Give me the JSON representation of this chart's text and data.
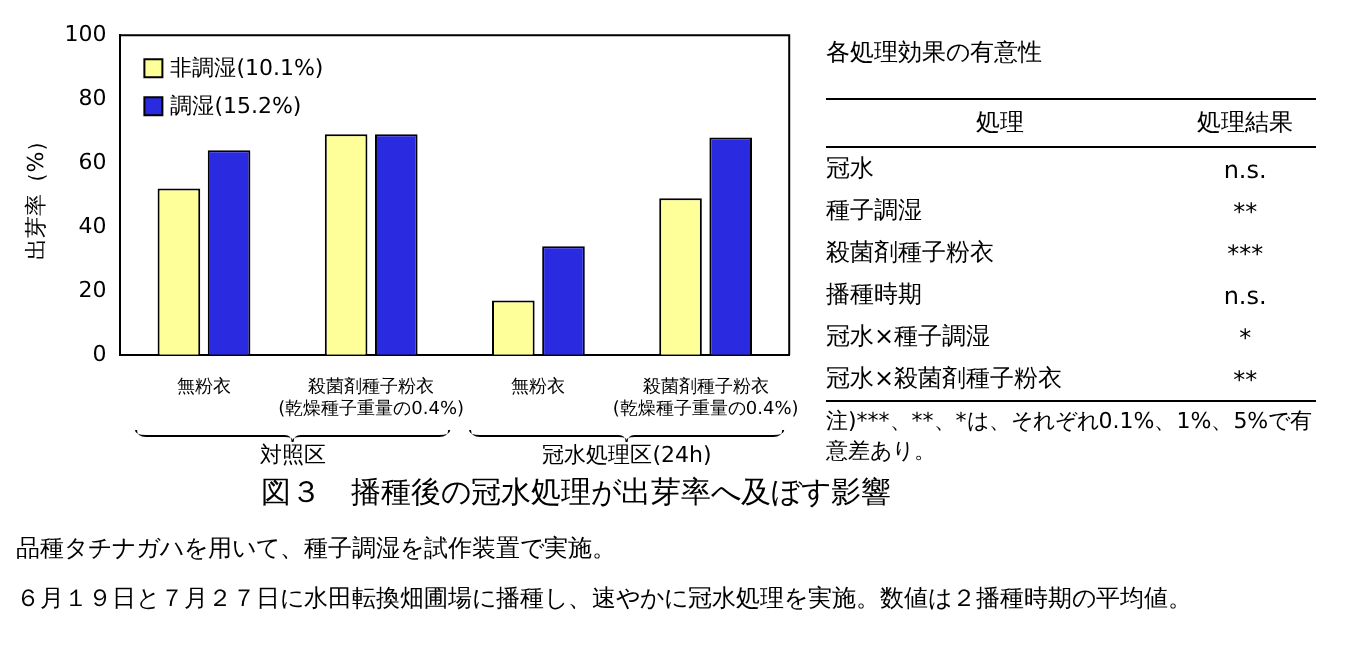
{
  "chart_data": [
    {
      "type": "bar",
      "title": "図３　播種後の冠水処理が出芽率へ及ぼす影響",
      "ylabel": "出芽率（%）",
      "categories": [
        "無粉衣",
        "殺菌剤種子粉衣\n(乾燥種子重量の0.4%)",
        "無粉衣",
        "殺菌剤種子粉衣\n(乾燥種子重量の0.4%)"
      ],
      "series": [
        {
          "name": "非調湿(10.1%)",
          "color": "#ffff99",
          "values": [
            52,
            69,
            17,
            49
          ]
        },
        {
          "name": "調湿(15.2%)",
          "color": "#2a2ae0",
          "values": [
            64,
            69,
            34,
            68
          ]
        }
      ],
      "ylim": [
        0,
        100
      ],
      "yticks": [
        0,
        20,
        40,
        60,
        80,
        100
      ],
      "grid": false,
      "legend": "top left",
      "annotations": [
        "対照区",
        "冠水処理区(24h)",
        "品種タチナガハを用いて、種子調湿を試作装置で実施。",
        "６月１９日と７月２７日に水田転換畑圃場に播種し、速やかに冠水処理を実施。数値は２播種時期の平均値。"
      ]
    },
    {
      "type": "other",
      "title": "各処理効果の有意性",
      "annotations": [
        "処理",
        "処理結果",
        "冠水",
        "n.s.",
        "種子調湿",
        "**",
        "殺菌剤種子粉衣",
        "***",
        "播種時期",
        "n.s.",
        "冠水×種子調湿",
        "*",
        "冠水×殺菌剤種子粉衣",
        "**",
        "注)***、**、*は、それぞれ0.1%、1%、5%で有意差あり。"
      ]
    }
  ]
}
